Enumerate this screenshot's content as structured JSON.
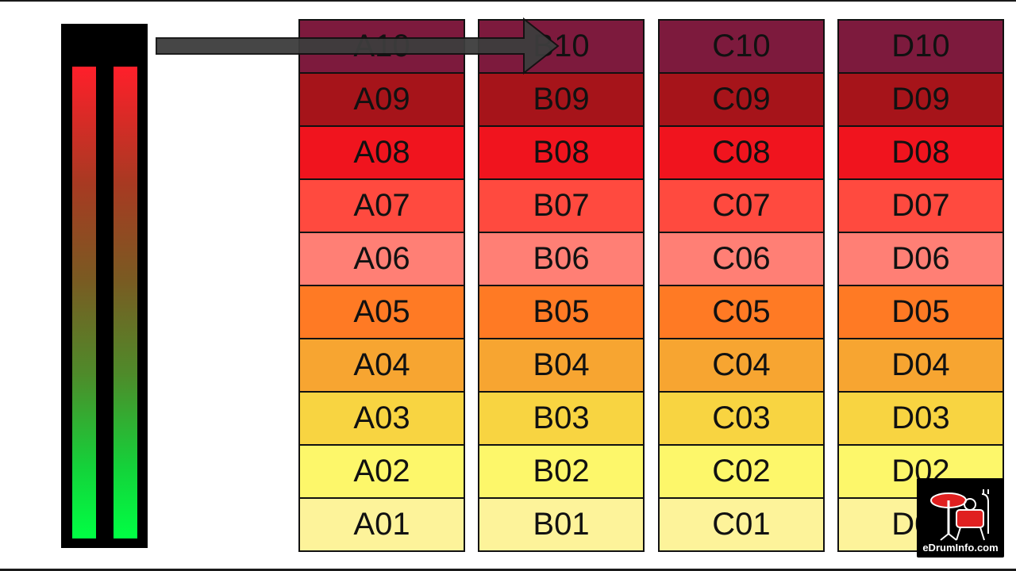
{
  "columns": [
    {
      "id": "A",
      "cells": [
        "A10",
        "A09",
        "A08",
        "A07",
        "A06",
        "A05",
        "A04",
        "A03",
        "A02",
        "A01"
      ]
    },
    {
      "id": "B",
      "cells": [
        "B10",
        "B09",
        "B08",
        "B07",
        "B06",
        "B05",
        "B04",
        "B03",
        "B02",
        "B01"
      ]
    },
    {
      "id": "C",
      "cells": [
        "C10",
        "C09",
        "C08",
        "C07",
        "C06",
        "C05",
        "C04",
        "C03",
        "C02",
        "C01"
      ]
    },
    {
      "id": "D",
      "cells": [
        "D10",
        "D09",
        "D08",
        "D07",
        "D06",
        "D05",
        "D04",
        "D03",
        "D02",
        "D01"
      ]
    }
  ],
  "row_colors": [
    "#7d1a3d",
    "#a6141a",
    "#f0141e",
    "#ff4a3f",
    "#ff7f75",
    "#ff7a24",
    "#f7a531",
    "#f8d441",
    "#fdf76a",
    "#fdf39a"
  ],
  "meter": {
    "channels": 2,
    "top_color": "#ff1f2a",
    "bottom_color": "#00ff44"
  },
  "arrow": {
    "color": "#3d3d3d",
    "from": "meter",
    "to": "B10"
  },
  "logo": {
    "text": "eDrumInfo.com",
    "icon": "drum-kit-icon"
  }
}
